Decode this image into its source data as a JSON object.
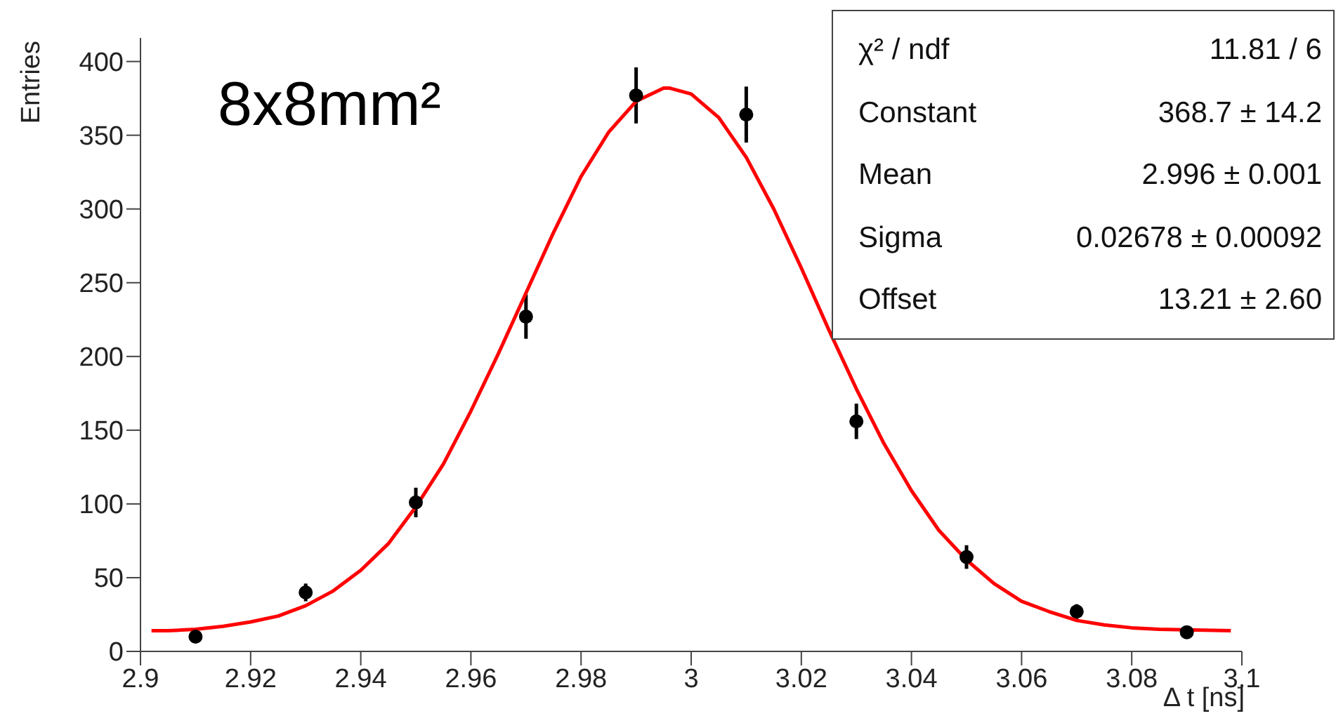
{
  "chart_data": {
    "type": "scatter",
    "xlabel": "Δ t [ns]",
    "ylabel": "Entries",
    "xlim": [
      2.9,
      3.1
    ],
    "xticks": [
      2.9,
      2.92,
      2.94,
      2.96,
      2.98,
      3,
      3.02,
      3.04,
      3.06,
      3.08,
      3.1
    ],
    "ylim": [
      0,
      416
    ],
    "yticks": [
      0,
      50,
      100,
      150,
      200,
      250,
      300,
      350,
      400
    ],
    "grid": false,
    "legend": false,
    "marker": "circle",
    "series": [
      {
        "color": "#000000",
        "x": [
          2.91,
          2.93,
          2.95,
          2.97,
          2.99,
          3.01,
          3.03,
          3.05,
          3.07,
          3.09
        ],
        "values": [
          10,
          40,
          101,
          227,
          377,
          364,
          156,
          64,
          27,
          13
        ],
        "errors": [
          3,
          6,
          10,
          15,
          19,
          19,
          12,
          8,
          5,
          4
        ]
      },
      {
        "type": "line",
        "color": "#ff0000",
        "marker": "none",
        "line_style": "solid",
        "x": [
          2.902,
          2.905,
          2.91,
          2.915,
          2.92,
          2.925,
          2.93,
          2.935,
          2.94,
          2.945,
          2.95,
          2.955,
          2.96,
          2.965,
          2.97,
          2.975,
          2.98,
          2.985,
          2.99,
          2.995,
          2.996,
          3.0,
          3.005,
          3.01,
          3.015,
          3.02,
          3.025,
          3.03,
          3.035,
          3.04,
          3.045,
          3.05,
          3.055,
          3.06,
          3.065,
          3.07,
          3.075,
          3.08,
          3.085,
          3.098
        ],
        "values": [
          14,
          14,
          15,
          17,
          20,
          24,
          31,
          41,
          55,
          73,
          98,
          127,
          163,
          202,
          243,
          284,
          322,
          352,
          373,
          382,
          382,
          378,
          362,
          335,
          300,
          260,
          218,
          178,
          141,
          109,
          82,
          62,
          46,
          34,
          27,
          21,
          18,
          16,
          15,
          14
        ]
      }
    ],
    "annotations": [
      "8x8mm²",
      "χ² / ndf",
      "11.81 / 6",
      "Constant",
      "368.7 ± 14.2",
      "Mean",
      "2.996 ± 0.001",
      "Sigma",
      "0.02678 ± 0.00092",
      "Offset",
      "13.21 ± 2.60"
    ]
  }
}
